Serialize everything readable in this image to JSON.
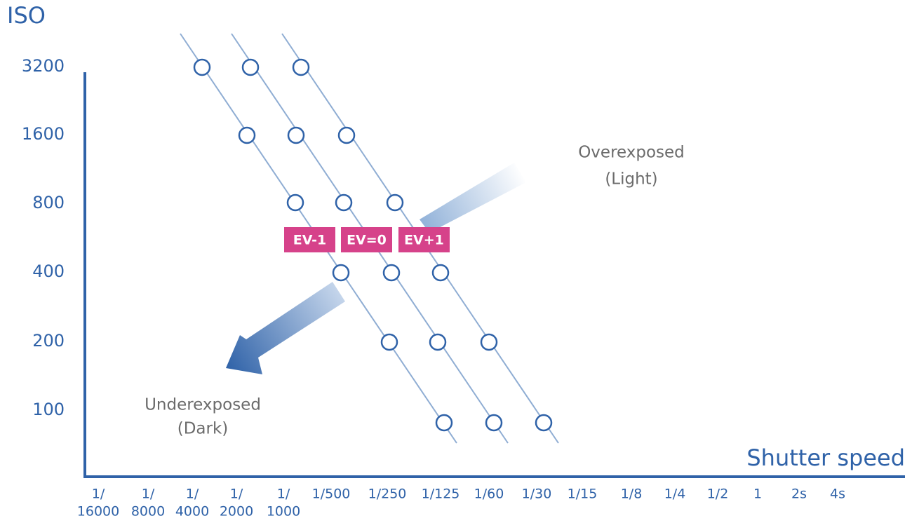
{
  "axis_y": {
    "title": "ISO",
    "labels": [
      "3200",
      "1600",
      "800",
      "400",
      "200",
      "100"
    ]
  },
  "axis_x": {
    "title": "Shutter speed",
    "labels": [
      [
        "1/",
        "16000"
      ],
      [
        "1/",
        "8000"
      ],
      [
        "1/",
        "4000"
      ],
      [
        "1/",
        "2000"
      ],
      [
        "1/",
        "1000"
      ],
      [
        "1/500"
      ],
      [
        "1/250"
      ],
      [
        "1/125"
      ],
      [
        "1/60"
      ],
      [
        "1/30"
      ],
      [
        "1/15"
      ],
      [
        "1/8"
      ],
      [
        "1/4"
      ],
      [
        "1/2"
      ],
      [
        "1"
      ],
      [
        "2s"
      ],
      [
        "4s"
      ]
    ]
  },
  "ev_labels": [
    "EV-1",
    "EV=0",
    "EV+1"
  ],
  "annotations": {
    "over": [
      "Overexposed",
      "(Light)"
    ],
    "under": [
      "Underexposed",
      "(Dark)"
    ]
  }
}
